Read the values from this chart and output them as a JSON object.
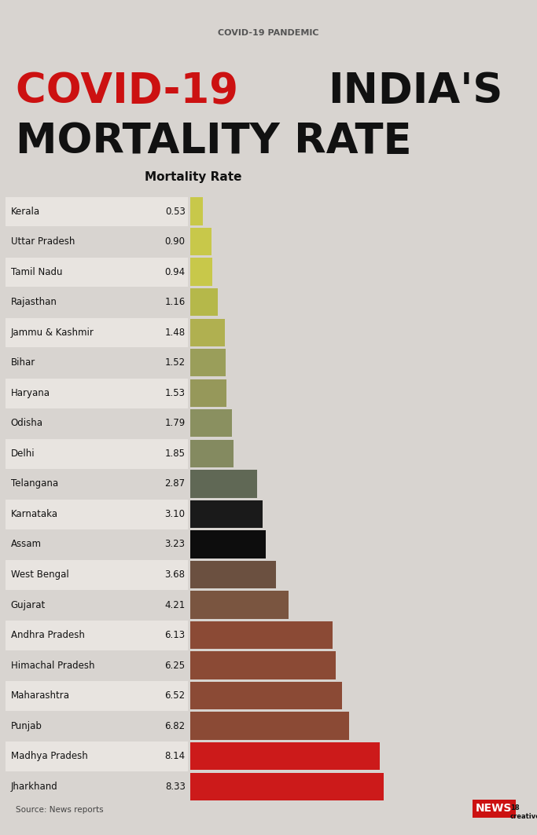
{
  "states": [
    "Kerala",
    "Uttar Pradesh",
    "Tamil Nadu",
    "Rajasthan",
    "Jammu & Kashmir",
    "Bihar",
    "Haryana",
    "Odisha",
    "Delhi",
    "Telangana",
    "Karnataka",
    "Assam",
    "West Bengal",
    "Gujarat",
    "Andhra Pradesh",
    "Himachal Pradesh",
    "Maharashtra",
    "Punjab",
    "Madhya Pradesh",
    "Jharkhand"
  ],
  "values": [
    0.53,
    0.9,
    0.94,
    1.16,
    1.48,
    1.52,
    1.53,
    1.79,
    1.85,
    2.87,
    3.1,
    3.23,
    3.68,
    4.21,
    6.13,
    6.25,
    6.52,
    6.82,
    8.14,
    8.33
  ],
  "bar_colors": [
    "#c8c84a",
    "#c8c84a",
    "#c8c84a",
    "#b5b84a",
    "#b0b050",
    "#9a9e5a",
    "#96985a",
    "#8a9060",
    "#848a60",
    "#606855",
    "#1a1a1a",
    "#0d0d0d",
    "#6b5040",
    "#7a5540",
    "#8b4a35",
    "#8b4a35",
    "#8b4a35",
    "#8b4a35",
    "#cc1a1a",
    "#cc1a1a"
  ],
  "background_color": "#d8d4d0",
  "title_covid": "COVID-19 ",
  "title_india": "INDIA'S",
  "title_line2": "MORTALITY RATE",
  "subtitle": "Mortality Rate",
  "source_text": "Source: News reports",
  "header_text": "COVID-19 PANDEMIC"
}
